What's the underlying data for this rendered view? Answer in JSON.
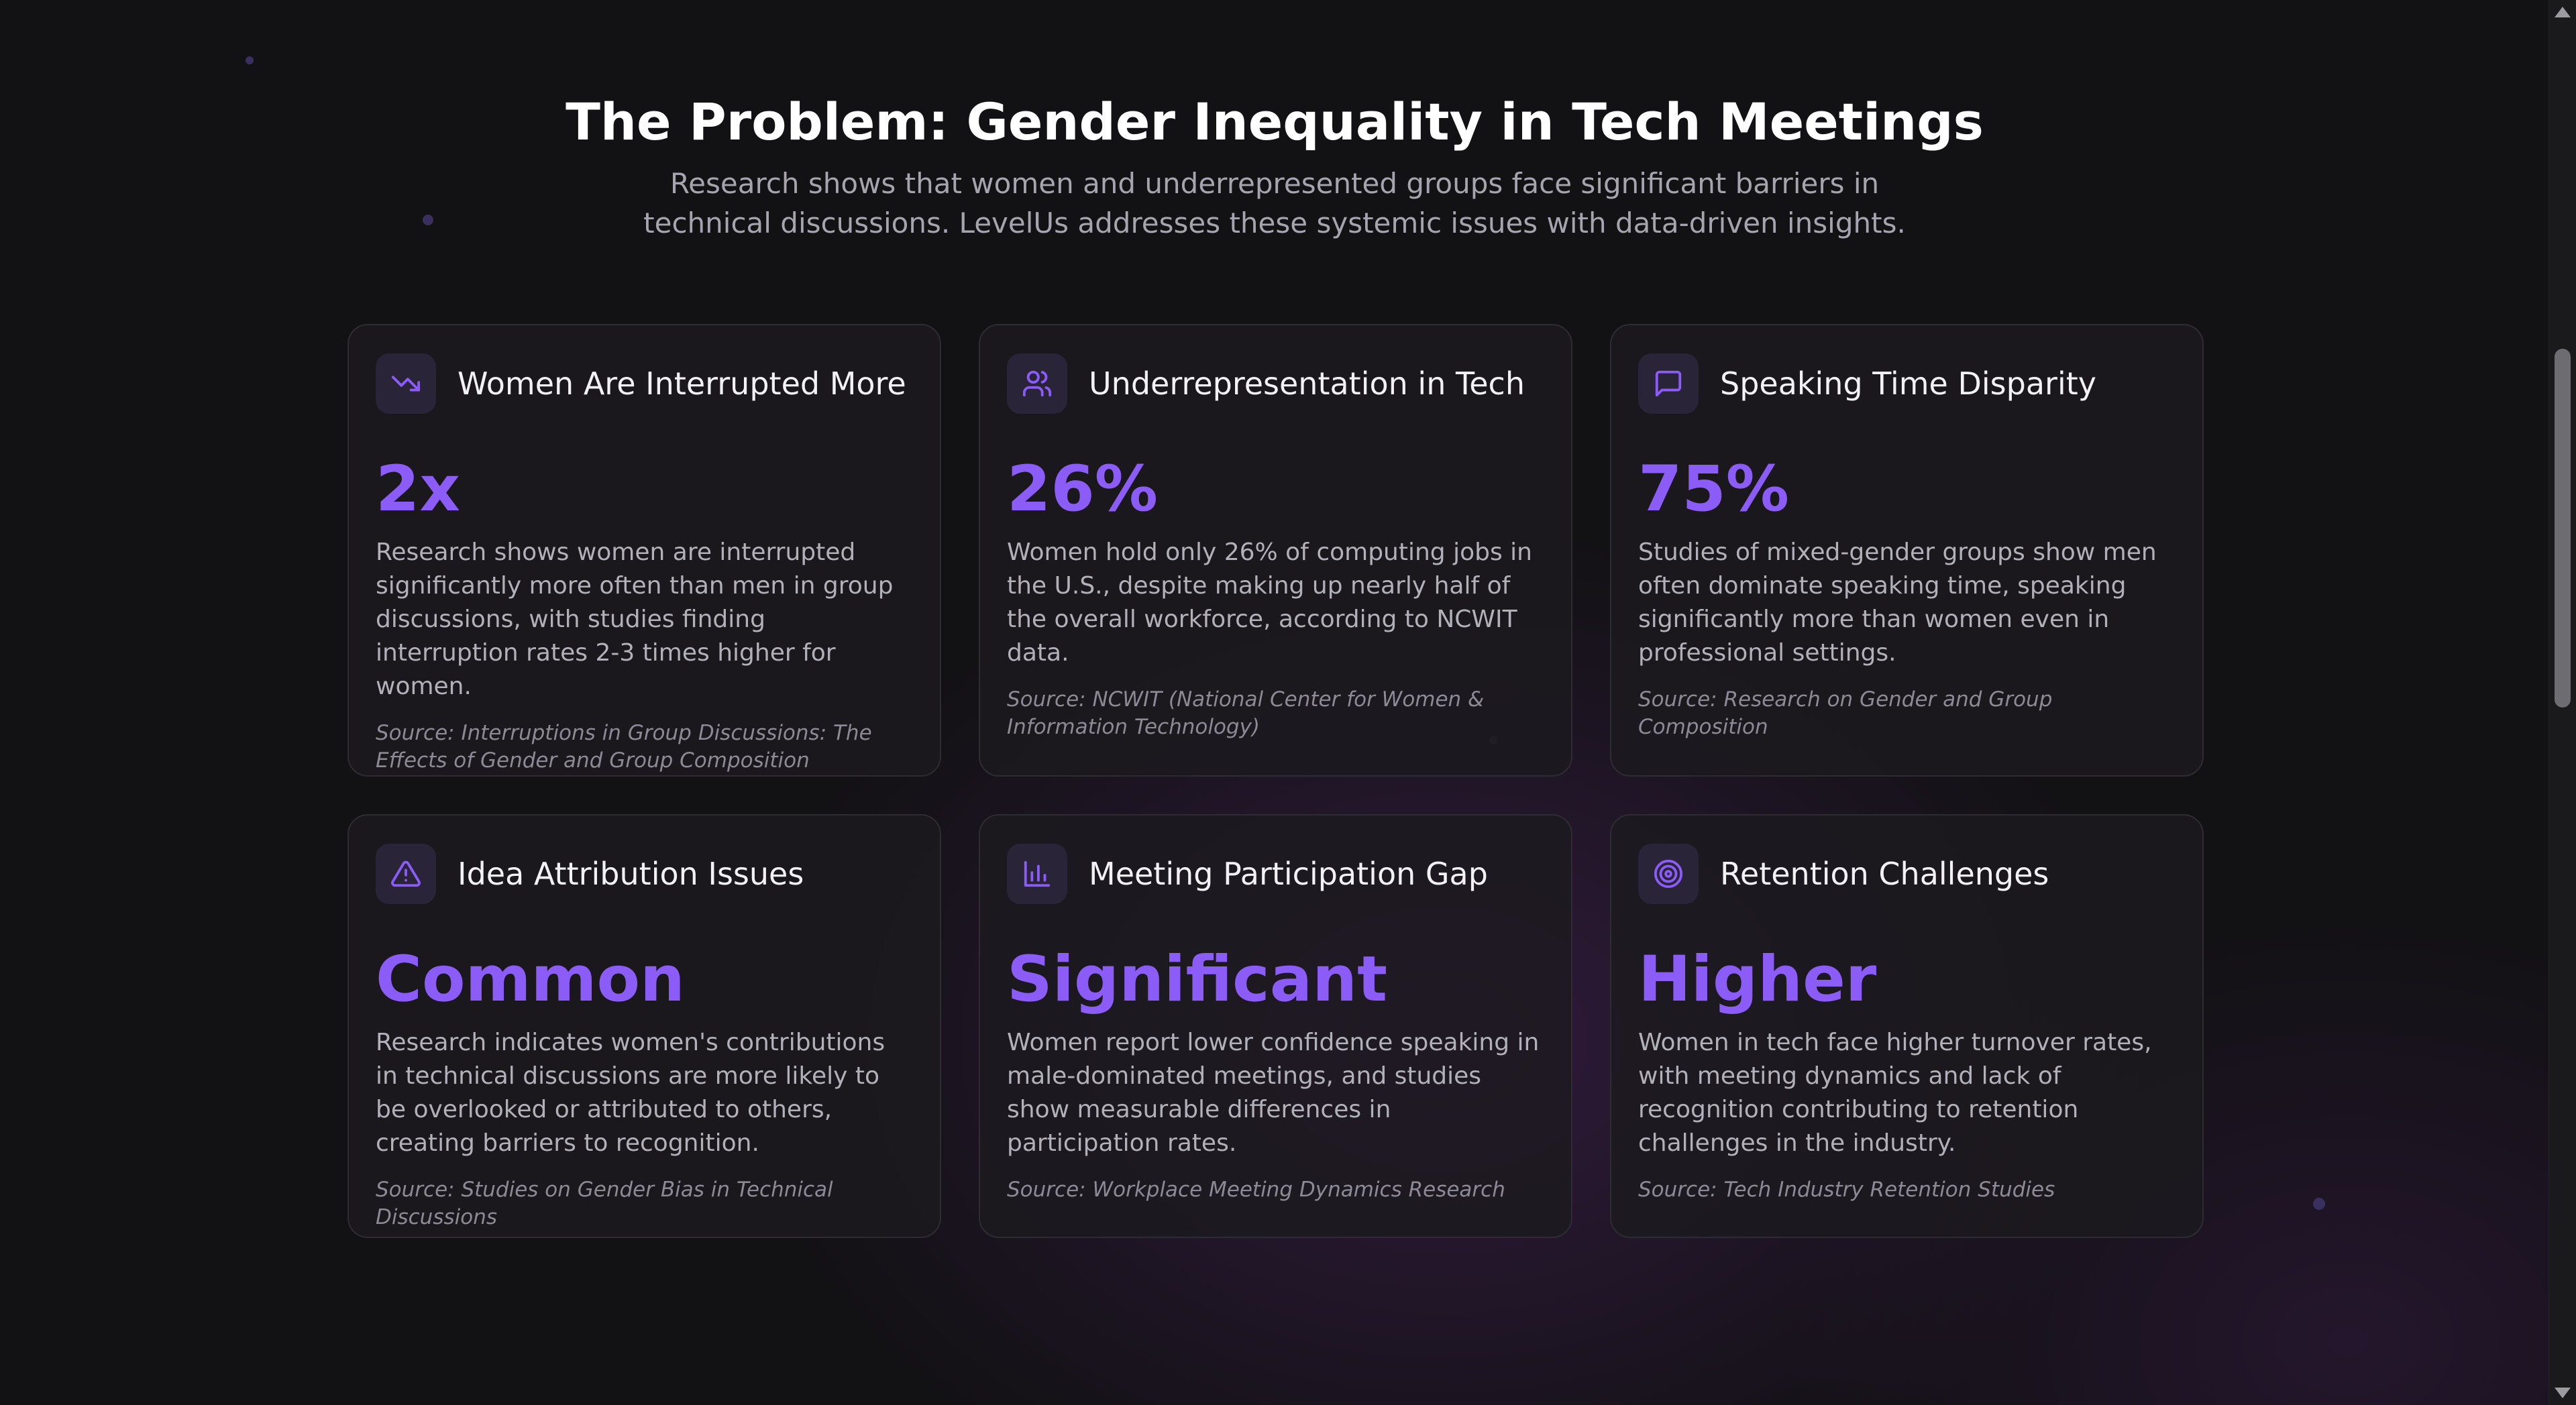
{
  "section": {
    "title": "The Problem: Gender Inequality in Tech Meetings",
    "subtitle": "Research shows that women and underrepresented groups face significant barriers in technical discussions. LevelUs addresses these systemic issues with data-driven insights."
  },
  "accent_color": "#8b5cf6",
  "cards": [
    {
      "icon": "trending-down-icon",
      "title": "Women Are Interrupted More",
      "stat": "2x",
      "description": "Research shows women are interrupted significantly more often than men in group discussions, with studies finding interruption rates 2-3 times higher for women.",
      "source": "Source: Interruptions in Group Discussions: The Effects of Gender and Group Composition"
    },
    {
      "icon": "users-icon",
      "title": "Underrepresentation in Tech",
      "stat": "26%",
      "description": "Women hold only 26% of computing jobs in the U.S., despite making up nearly half of the overall workforce, according to NCWIT data.",
      "source": "Source: NCWIT (National Center for Women & Information Technology)"
    },
    {
      "icon": "message-square-icon",
      "title": "Speaking Time Disparity",
      "stat": "75%",
      "description": "Studies of mixed-gender groups show men often dominate speaking time, speaking significantly more than women even in professional settings.",
      "source": "Source: Research on Gender and Group Composition"
    },
    {
      "icon": "alert-triangle-icon",
      "title": "Idea Attribution Issues",
      "stat": "Common",
      "description": "Research indicates women's contributions in technical discussions are more likely to be overlooked or attributed to others, creating barriers to recognition.",
      "source": "Source: Studies on Gender Bias in Technical Discussions"
    },
    {
      "icon": "bar-chart-icon",
      "title": "Meeting Participation Gap",
      "stat": "Significant",
      "description": "Women report lower confidence speaking in male-dominated meetings, and studies show measurable differences in participation rates.",
      "source": "Source: Workplace Meeting Dynamics Research"
    },
    {
      "icon": "target-icon",
      "title": "Retention Challenges",
      "stat": "Higher",
      "description": "Women in tech face higher turnover rates, with meeting dynamics and lack of recognition contributing to retention challenges in the industry.",
      "source": "Source: Tech Industry Retention Studies"
    }
  ]
}
